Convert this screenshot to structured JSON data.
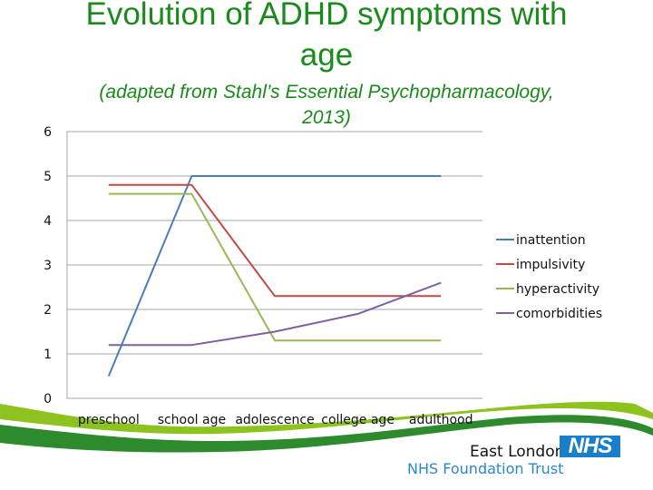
{
  "slide": {
    "title_lines": [
      "Evolution of ADHD symptoms with",
      "age"
    ],
    "subtitle_lines": [
      "(adapted from Stahl’s Essential Psychopharmacology,",
      "2013)"
    ],
    "title_color": "#1a8a1a"
  },
  "chart_data": {
    "type": "line",
    "title": "Evolution of ADHD symptoms with age",
    "subtitle": "(adapted from Stahl’s Essential Psychopharmacology, 2013)",
    "xlabel": "",
    "ylabel": "",
    "categories": [
      "preschool",
      "school age",
      "adolescence",
      "college age",
      "adulthood"
    ],
    "ylim": [
      0,
      6
    ],
    "yticks": [
      0,
      1,
      2,
      3,
      4,
      5,
      6
    ],
    "grid": true,
    "legend_position": "right",
    "series": [
      {
        "name": "inattention",
        "color": "#4a7ebb",
        "values": [
          0.5,
          5.0,
          5.0,
          5.0,
          5.0
        ]
      },
      {
        "name": "impulsivity",
        "color": "#be4b48",
        "values": [
          4.8,
          4.8,
          2.3,
          2.3,
          2.3
        ]
      },
      {
        "name": "hyperactivity",
        "color": "#98b954",
        "values": [
          4.6,
          4.6,
          1.3,
          1.3,
          1.3
        ]
      },
      {
        "name": "comorbidities",
        "color": "#7d60a0",
        "values": [
          1.2,
          1.2,
          1.5,
          1.9,
          2.6
        ]
      }
    ]
  },
  "footer": {
    "org_line1": "East London",
    "org_line2": "NHS Foundation Trust",
    "logo_text": "NHS",
    "logo_color": "#1a7fc8",
    "swoosh_light": "#8dc21f",
    "swoosh_dark": "#2d8a2d"
  }
}
